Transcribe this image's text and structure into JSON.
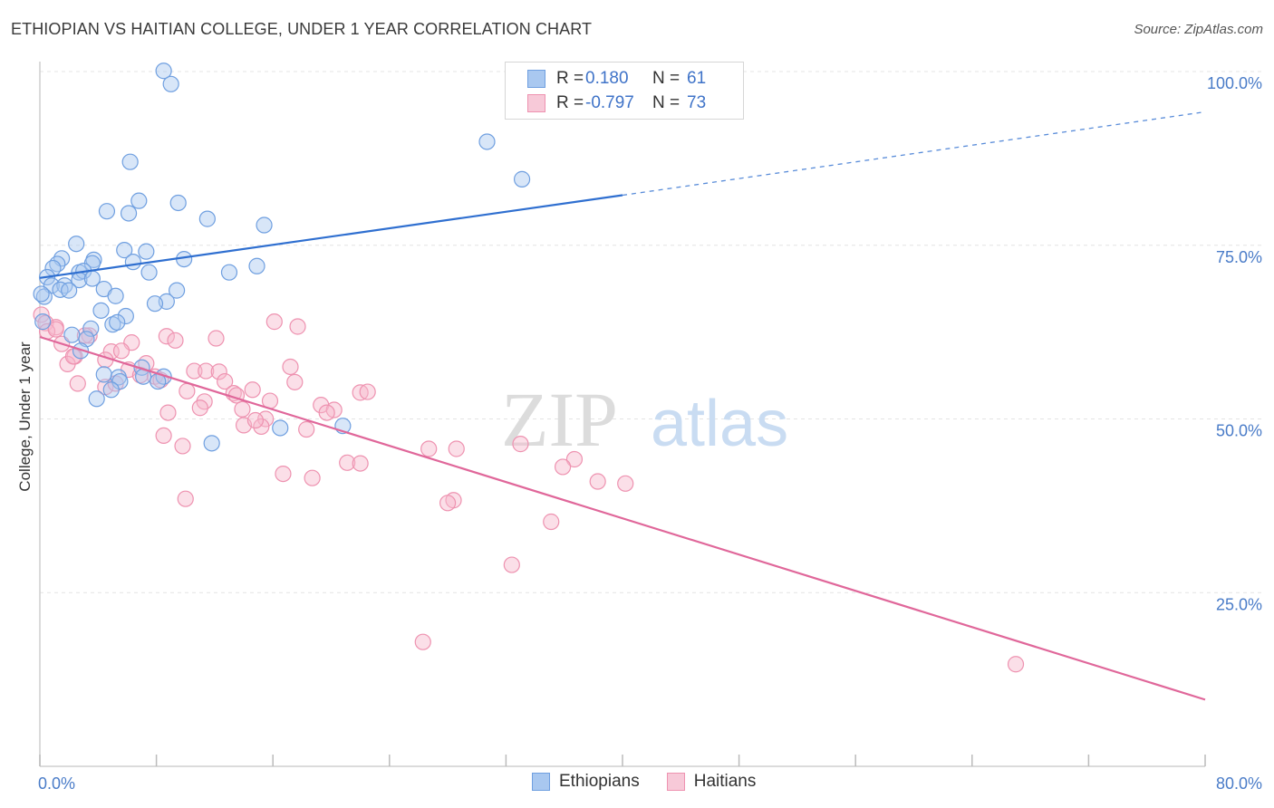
{
  "header": {
    "title": "ETHIOPIAN VS HAITIAN COLLEGE, UNDER 1 YEAR CORRELATION CHART",
    "source": "Source: ZipAtlas.com"
  },
  "watermark": {
    "zip": "ZIP",
    "atlas": "atlas"
  },
  "legend_top": [
    {
      "r_label": "R =",
      "r_value": "0.180",
      "n_label": "N =",
      "n_value": "61"
    },
    {
      "r_label": "R =",
      "r_value": "-0.797",
      "n_label": "N =",
      "n_value": "73"
    }
  ],
  "legend_bottom": [
    {
      "label": "Ethiopians"
    },
    {
      "label": "Haitians"
    }
  ],
  "colors": {
    "ethiopian_fill": "#a9c8f0",
    "ethiopian_stroke": "#6f9fe0",
    "ethiopian_line": "#2f6fd0",
    "haitian_fill": "#f7b9cd",
    "haitian_stroke": "#ee92b0",
    "haitian_line": "#e0679a",
    "axis_text": "#4a7cc8",
    "grid": "#e4e4e4"
  },
  "chart_data": {
    "type": "scatter",
    "title": "ETHIOPIAN VS HAITIAN COLLEGE, UNDER 1 YEAR CORRELATION CHART",
    "xlabel": "",
    "ylabel": "College, Under 1 year",
    "xlim": [
      0,
      80
    ],
    "ylim": [
      0,
      100
    ],
    "x_tick_labels": [
      {
        "value": 0,
        "label": "0.0%"
      },
      {
        "value": 80,
        "label": "80.0%"
      }
    ],
    "y_tick_labels": [
      {
        "value": 100,
        "label": "100.0%"
      },
      {
        "value": 75,
        "label": "75.0%"
      },
      {
        "value": 50,
        "label": "50.0%"
      },
      {
        "value": 25,
        "label": "25.0%"
      }
    ],
    "x_minor_ticks": [
      0,
      8,
      16,
      24,
      32,
      40,
      48,
      56,
      64,
      72,
      80
    ],
    "series": [
      {
        "name": "Ethiopians",
        "r": 0.18,
        "n": 61,
        "trend": {
          "x0": 0,
          "y0": 70.3,
          "x1": 40,
          "y1": 82.2,
          "dash_to_x": 80,
          "dash_to_y": 94.2
        },
        "points": [
          [
            8.5,
            100.1
          ],
          [
            9.0,
            98.2
          ],
          [
            30.7,
            89.9
          ],
          [
            6.2,
            87.0
          ],
          [
            33.1,
            84.5
          ],
          [
            6.8,
            81.4
          ],
          [
            9.5,
            81.1
          ],
          [
            4.6,
            79.9
          ],
          [
            6.1,
            79.6
          ],
          [
            11.5,
            78.8
          ],
          [
            15.4,
            77.9
          ],
          [
            2.5,
            75.2
          ],
          [
            5.8,
            74.3
          ],
          [
            7.3,
            74.1
          ],
          [
            1.5,
            73.1
          ],
          [
            3.7,
            72.9
          ],
          [
            9.9,
            73.0
          ],
          [
            6.4,
            72.6
          ],
          [
            1.2,
            72.3
          ],
          [
            3.6,
            72.4
          ],
          [
            0.9,
            71.7
          ],
          [
            2.7,
            71.1
          ],
          [
            3.0,
            71.3
          ],
          [
            7.5,
            71.1
          ],
          [
            13.0,
            71.1
          ],
          [
            14.9,
            72.0
          ],
          [
            0.5,
            70.4
          ],
          [
            2.7,
            70.0
          ],
          [
            3.6,
            70.2
          ],
          [
            0.8,
            69.2
          ],
          [
            1.7,
            69.2
          ],
          [
            1.4,
            68.6
          ],
          [
            2.0,
            68.5
          ],
          [
            4.4,
            68.7
          ],
          [
            9.4,
            68.5
          ],
          [
            0.3,
            67.6
          ],
          [
            5.2,
            67.7
          ],
          [
            8.7,
            66.9
          ],
          [
            7.9,
            66.6
          ],
          [
            4.2,
            65.6
          ],
          [
            5.9,
            64.8
          ],
          [
            0.2,
            64.0
          ],
          [
            5.0,
            63.6
          ],
          [
            5.3,
            63.9
          ],
          [
            3.5,
            63.0
          ],
          [
            2.2,
            62.1
          ],
          [
            3.2,
            61.5
          ],
          [
            2.8,
            59.8
          ],
          [
            7.0,
            57.4
          ],
          [
            4.4,
            56.4
          ],
          [
            5.4,
            56.0
          ],
          [
            8.5,
            56.1
          ],
          [
            7.1,
            56.1
          ],
          [
            5.5,
            55.4
          ],
          [
            8.1,
            55.4
          ],
          [
            4.9,
            54.2
          ],
          [
            3.9,
            52.9
          ],
          [
            16.5,
            48.7
          ],
          [
            20.8,
            49.0
          ],
          [
            11.8,
            46.5
          ],
          [
            0.1,
            68.0
          ]
        ]
      },
      {
        "name": "Haitians",
        "r": -0.797,
        "n": 73,
        "trend": {
          "x0": 0,
          "y0": 61.8,
          "x1": 80,
          "y1": 9.6
        },
        "points": [
          [
            0.1,
            65.0
          ],
          [
            0.4,
            63.8
          ],
          [
            1.1,
            63.2
          ],
          [
            0.5,
            62.6
          ],
          [
            3.4,
            62.0
          ],
          [
            16.1,
            64.0
          ],
          [
            17.7,
            63.3
          ],
          [
            8.7,
            61.9
          ],
          [
            9.3,
            61.3
          ],
          [
            12.1,
            61.6
          ],
          [
            1.5,
            60.8
          ],
          [
            6.3,
            61.0
          ],
          [
            4.9,
            59.7
          ],
          [
            5.6,
            59.8
          ],
          [
            2.4,
            59.0
          ],
          [
            4.5,
            58.5
          ],
          [
            1.9,
            57.9
          ],
          [
            7.3,
            58.0
          ],
          [
            17.2,
            57.5
          ],
          [
            6.1,
            57.1
          ],
          [
            10.6,
            56.9
          ],
          [
            11.4,
            56.9
          ],
          [
            12.3,
            56.8
          ],
          [
            6.9,
            56.3
          ],
          [
            7.9,
            56.1
          ],
          [
            2.6,
            55.1
          ],
          [
            4.5,
            54.6
          ],
          [
            5.2,
            55.1
          ],
          [
            8.3,
            55.6
          ],
          [
            17.5,
            55.3
          ],
          [
            12.7,
            55.4
          ],
          [
            10.1,
            54.0
          ],
          [
            13.3,
            53.7
          ],
          [
            13.5,
            53.4
          ],
          [
            14.6,
            54.2
          ],
          [
            22.0,
            53.8
          ],
          [
            22.5,
            53.9
          ],
          [
            11.3,
            52.5
          ],
          [
            15.8,
            52.6
          ],
          [
            19.3,
            52.0
          ],
          [
            11.0,
            51.6
          ],
          [
            13.9,
            51.4
          ],
          [
            20.2,
            51.3
          ],
          [
            19.7,
            50.9
          ],
          [
            8.8,
            50.9
          ],
          [
            15.5,
            50.0
          ],
          [
            14.0,
            49.1
          ],
          [
            15.2,
            48.9
          ],
          [
            14.8,
            49.8
          ],
          [
            18.3,
            48.5
          ],
          [
            8.5,
            47.6
          ],
          [
            9.8,
            46.1
          ],
          [
            26.7,
            45.7
          ],
          [
            28.6,
            45.7
          ],
          [
            33.0,
            46.4
          ],
          [
            21.1,
            43.7
          ],
          [
            22.0,
            43.6
          ],
          [
            36.7,
            44.2
          ],
          [
            35.9,
            43.1
          ],
          [
            16.7,
            42.1
          ],
          [
            18.7,
            41.5
          ],
          [
            38.3,
            41.0
          ],
          [
            40.2,
            40.7
          ],
          [
            28.4,
            38.3
          ],
          [
            28.0,
            37.9
          ],
          [
            10.0,
            38.5
          ],
          [
            35.1,
            35.2
          ],
          [
            32.4,
            29.0
          ],
          [
            26.3,
            17.9
          ],
          [
            67.0,
            14.7
          ],
          [
            1.1,
            62.9
          ],
          [
            3.1,
            62.0
          ],
          [
            2.3,
            59.0
          ]
        ]
      }
    ]
  }
}
